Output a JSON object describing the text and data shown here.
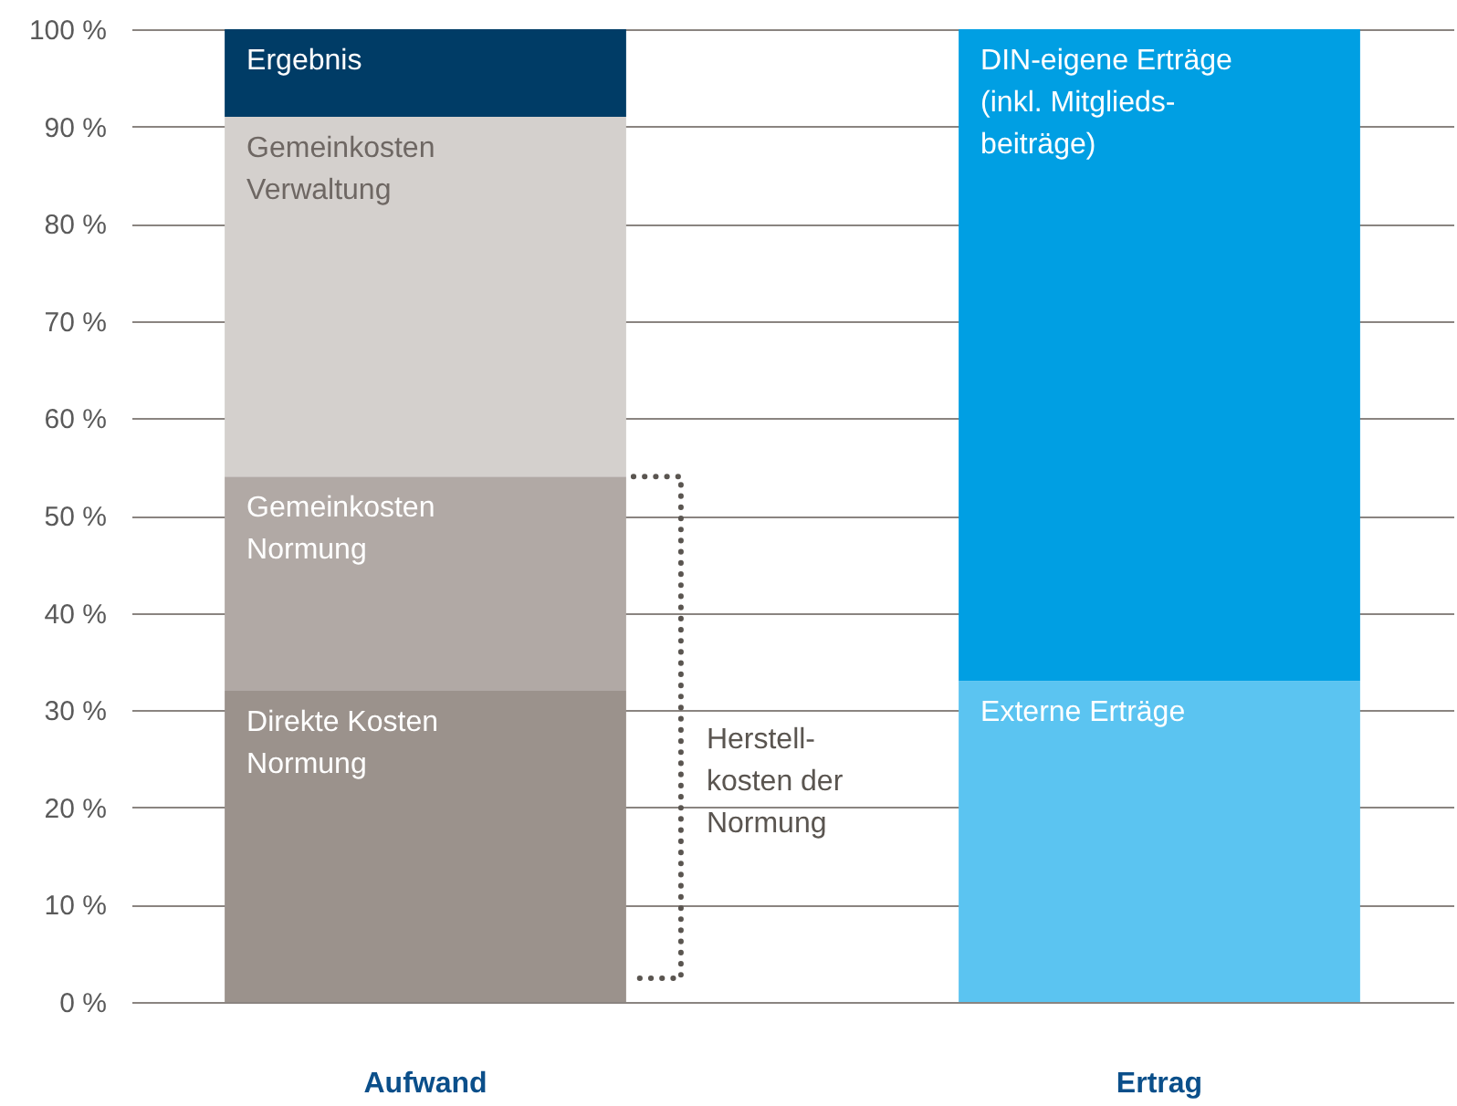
{
  "chart_data": {
    "type": "bar",
    "stacked": true,
    "categories": [
      "Aufwand",
      "Ertrag"
    ],
    "series": [
      {
        "name": "Direkte Kosten\nNormung",
        "color": "#9b928c",
        "values": [
          32,
          null
        ]
      },
      {
        "name": "Gemeinkosten\nNormung",
        "color": "#b1a9a5",
        "values": [
          22,
          null
        ]
      },
      {
        "name": "Gemeinkosten\nVerwaltung",
        "color": "#d4d0cd",
        "values": [
          37,
          null
        ]
      },
      {
        "name": "Ergebnis",
        "color": "#003c66",
        "values": [
          9,
          null
        ]
      },
      {
        "name": "Externe Erträge",
        "color": "#5bc4f1",
        "values": [
          null,
          33
        ]
      },
      {
        "name": "DIN-eigene Erträge\n(inkl. Mitglieds-\nbeiträge)",
        "color": "#009fe3",
        "values": [
          null,
          67
        ]
      }
    ],
    "ylim": [
      0,
      100
    ],
    "yticks": [
      {
        "value": 0,
        "label": "0 %"
      },
      {
        "value": 10,
        "label": "10 %"
      },
      {
        "value": 20,
        "label": "20 %"
      },
      {
        "value": 30,
        "label": "30 %"
      },
      {
        "value": 40,
        "label": "40 %"
      },
      {
        "value": 50,
        "label": "50 %"
      },
      {
        "value": 60,
        "label": "60 %"
      },
      {
        "value": 70,
        "label": "70 %"
      },
      {
        "value": 80,
        "label": "80 %"
      },
      {
        "value": 90,
        "label": "90 %"
      },
      {
        "value": 100,
        "label": "100 %"
      }
    ],
    "grid": "y",
    "annotations": [
      "Herstell-\nkosten der\nNormung"
    ]
  }
}
